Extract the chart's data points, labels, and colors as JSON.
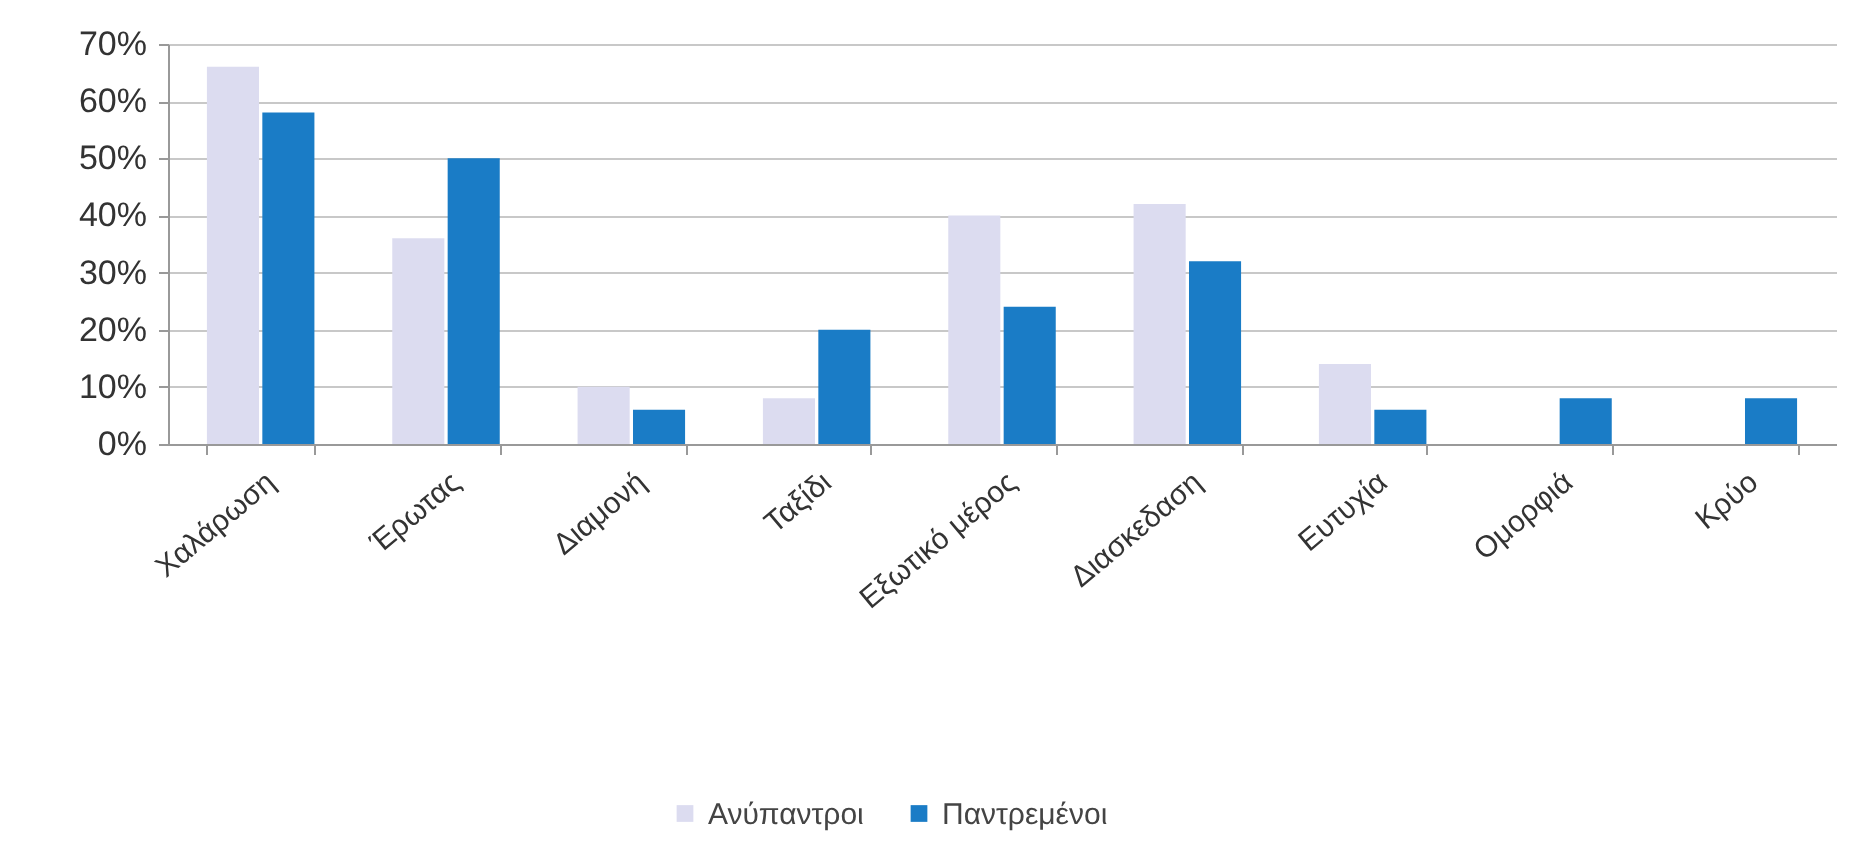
{
  "chart_data": {
    "type": "bar",
    "categories": [
      "Χαλάρωση",
      "Έρωτας",
      "Διαμονή",
      "Ταξίδι",
      "Εξωτικό μέρος",
      "Διασκεδαση",
      "Ευτυχία",
      "Ομορφιά",
      "Κρύο"
    ],
    "series": [
      {
        "name": "Ανύπαντροι",
        "color": "#dcdcf0",
        "values": [
          66,
          36,
          10,
          8,
          40,
          42,
          14,
          null,
          null
        ]
      },
      {
        "name": "Παντρεμένοι",
        "color": "#1a7cc6",
        "values": [
          58,
          50,
          6,
          20,
          24,
          32,
          6,
          8,
          8
        ]
      }
    ],
    "ylim": [
      0,
      70
    ],
    "yticks": [
      {
        "value": 0,
        "label": "0%"
      },
      {
        "value": 10,
        "label": "10%"
      },
      {
        "value": 20,
        "label": "20%"
      },
      {
        "value": 30,
        "label": "30%"
      },
      {
        "value": 40,
        "label": "40%"
      },
      {
        "value": 50,
        "label": "50%"
      },
      {
        "value": 60,
        "label": "60%"
      },
      {
        "value": 70,
        "label": "70%"
      }
    ],
    "grid": "y",
    "legend": "bottom"
  }
}
